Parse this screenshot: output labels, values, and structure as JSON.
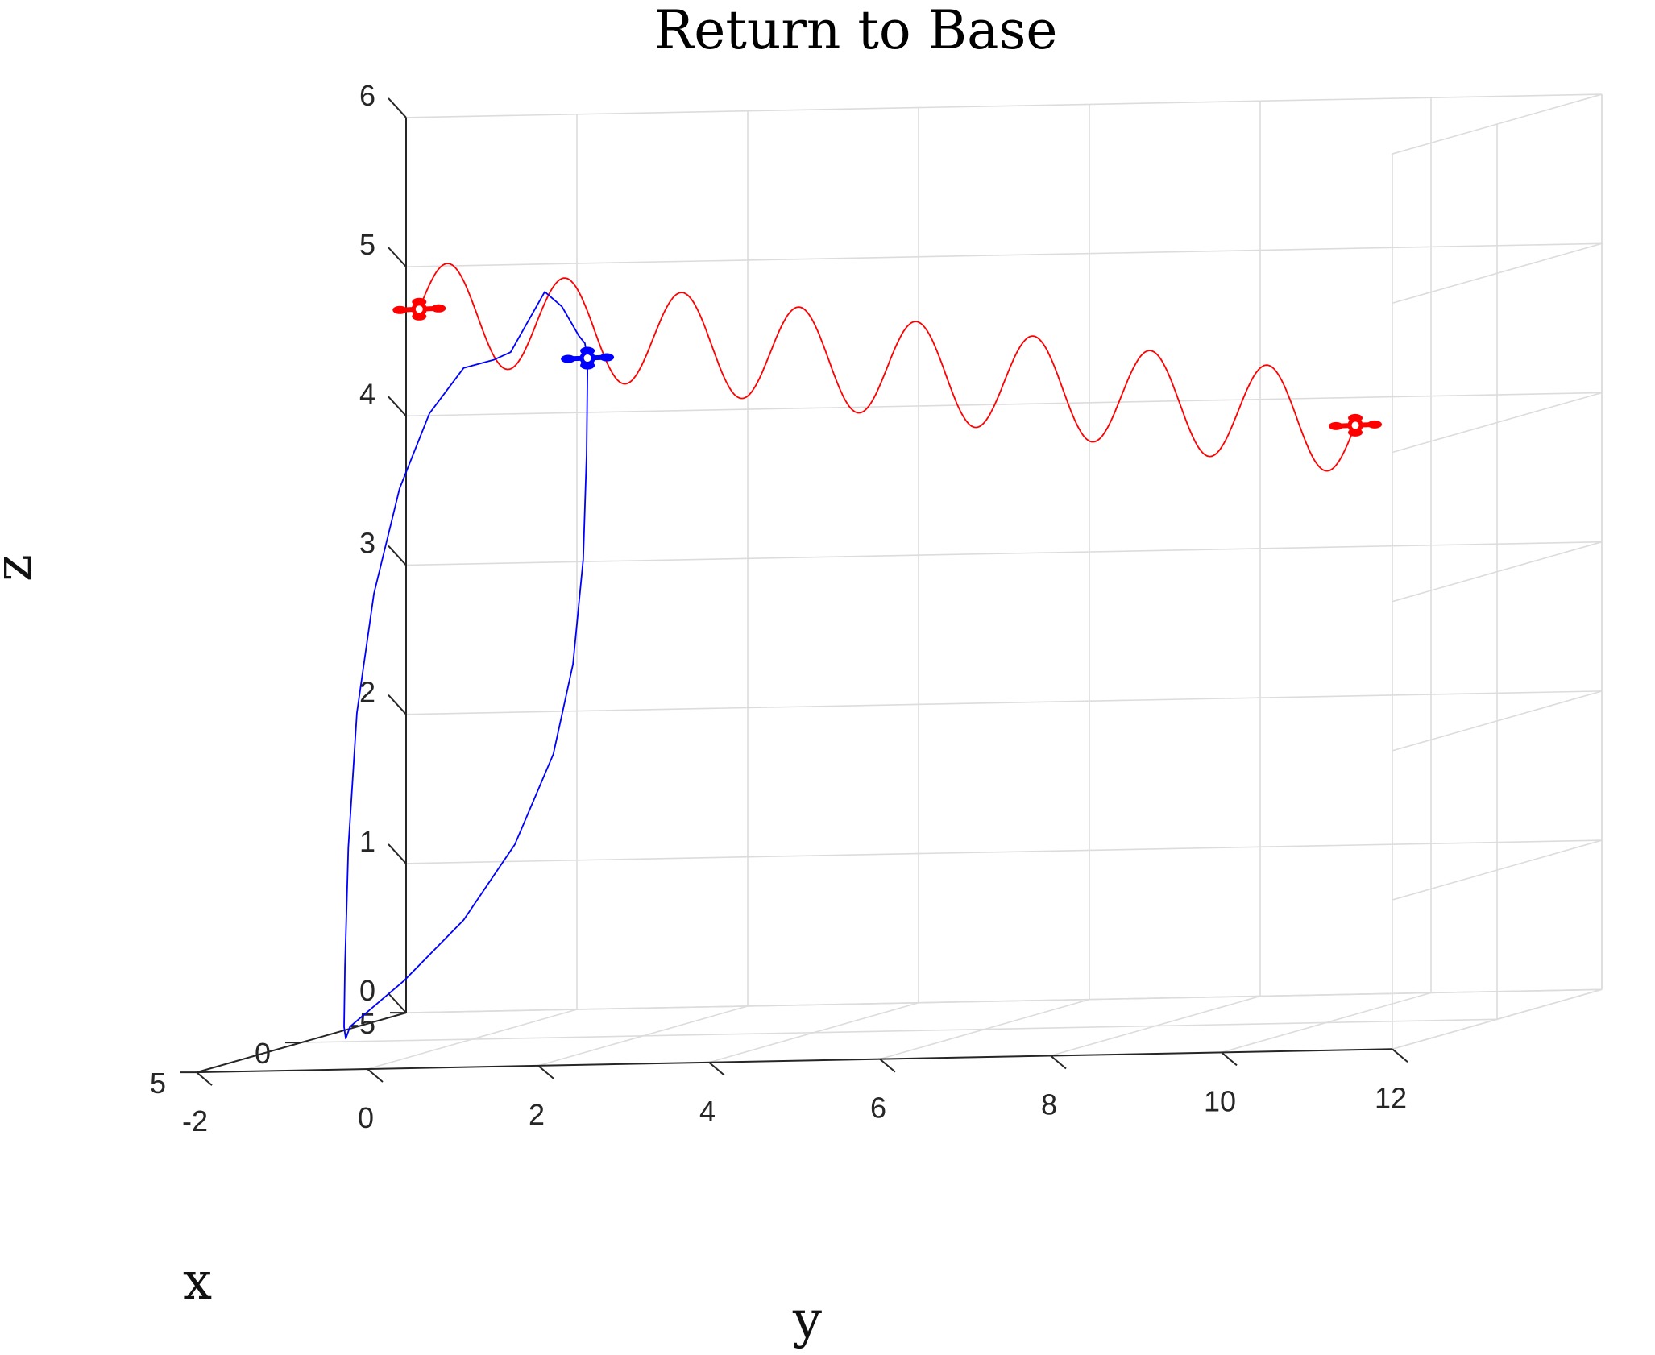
{
  "chart_data": {
    "type": "line3d",
    "title": "Return to Base",
    "xlabel": "x",
    "ylabel": "y",
    "zlabel": "z",
    "xlim": [
      -5,
      5
    ],
    "ylim": [
      -2,
      12
    ],
    "zlim": [
      0,
      6
    ],
    "xticks": [
      "-5",
      "0",
      "5"
    ],
    "yticks": [
      "-2",
      "0",
      "2",
      "4",
      "6",
      "8",
      "10",
      "12"
    ],
    "zticks": [
      "0",
      "1",
      "2",
      "3",
      "4",
      "5",
      "6"
    ],
    "grid": true,
    "colors": {
      "reference": "#ff0000",
      "return": "#0000ff",
      "grid": "#dcdcdc"
    },
    "series": [
      {
        "key": "reference",
        "marker_at_start": true,
        "marker_at_end": true,
        "x": [
          0,
          0
        ],
        "y": [
          -0.62,
          10.34
        ],
        "z": [
          4.9,
          4.0
        ],
        "sine_amplitude": 0.33,
        "sine_cycles": 8
      },
      {
        "key": "return",
        "marker_at_end": true,
        "points": [
          {
            "x": 0.0,
            "y": 1.35,
            "z": 4.55
          },
          {
            "x": 0.0,
            "y": 1.35,
            "z": 4.45
          },
          {
            "x": 0.0,
            "y": 1.34,
            "z": 3.9
          },
          {
            "x": 0.0,
            "y": 1.3,
            "z": 3.2
          },
          {
            "x": 0.0,
            "y": 1.18,
            "z": 2.5
          },
          {
            "x": 0.0,
            "y": 0.95,
            "z": 1.9
          },
          {
            "x": 0.0,
            "y": 0.5,
            "z": 1.3
          },
          {
            "x": 0.0,
            "y": -0.1,
            "z": 0.8
          },
          {
            "x": 0.0,
            "y": -0.8,
            "z": 0.4
          },
          {
            "x": 0.0,
            "y": -1.43,
            "z": 0.1
          },
          {
            "x": 0.0,
            "y": -1.48,
            "z": 0.02
          },
          {
            "x": 0.0,
            "y": -1.5,
            "z": 0.1
          },
          {
            "x": 0.0,
            "y": -1.49,
            "z": 0.5
          },
          {
            "x": 0.0,
            "y": -1.45,
            "z": 1.3
          },
          {
            "x": 0.0,
            "y": -1.35,
            "z": 2.2
          },
          {
            "x": 0.0,
            "y": -1.15,
            "z": 3.0
          },
          {
            "x": 0.0,
            "y": -0.85,
            "z": 3.7
          },
          {
            "x": 0.0,
            "y": -0.5,
            "z": 4.2
          },
          {
            "x": 0.0,
            "y": -0.1,
            "z": 4.5
          },
          {
            "x": 0.0,
            "y": 0.25,
            "z": 4.55
          },
          {
            "x": 0.0,
            "y": 0.45,
            "z": 4.6
          },
          {
            "x": 0.0,
            "y": 0.65,
            "z": 4.8
          },
          {
            "x": 0.0,
            "y": 0.85,
            "z": 5.0
          },
          {
            "x": 0.0,
            "y": 1.05,
            "z": 4.9
          },
          {
            "x": 0.0,
            "y": 1.25,
            "z": 4.7
          },
          {
            "x": 0.0,
            "y": 1.32,
            "z": 4.65
          },
          {
            "x": 0.0,
            "y": 1.35,
            "z": 4.55
          }
        ]
      }
    ]
  }
}
